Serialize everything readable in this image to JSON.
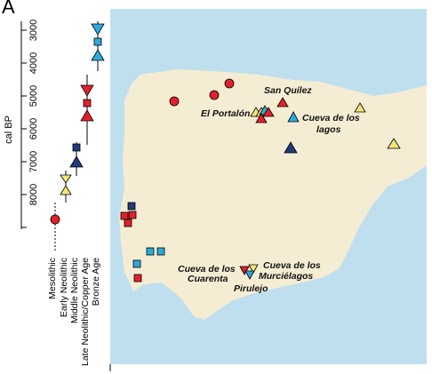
{
  "panel_label": "A",
  "timeline": {
    "axis_title": "cal BP",
    "ticks": [
      "3000",
      "4000",
      "5000",
      "6000",
      "7000",
      "8000"
    ],
    "periods": [
      "Mesolithic",
      "Early Neolithic",
      "Middle Neolithic",
      "Late Neolithic/Copper Age",
      "Bronze Age"
    ]
  },
  "map": {
    "site_labels": {
      "san_quilez": "San Quílez",
      "el_portalon": "El Portalón",
      "cueva_lagos_1": "Cueva de los",
      "cueva_lagos_2": "lagos",
      "cueva_cuarenta_1": "Cueva de los",
      "cueva_cuarenta_2": "Cuarenta",
      "cueva_murcielagos_1": "Cueva de los",
      "cueva_murcielagos_2": "Murciélagos",
      "pirulejo": "Pirulejo"
    }
  },
  "legend_symbols": {
    "Mesolithic": {
      "shape": "circle",
      "color": "#e2202b"
    },
    "Early Neolithic": {
      "shape": "hourglass-triangles",
      "color": "#f3e47c"
    },
    "Middle Neolithic": {
      "shape": "triangle-up",
      "color": "#1f3b78"
    },
    "Late Neolithic/Copper Age": {
      "shape": "square/triangles",
      "color": "#e2202b"
    },
    "Bronze Age": {
      "shape": "square/triangles",
      "color": "#2ea9dc"
    }
  },
  "colors": {
    "sea": "#bfdfee",
    "land": "#f5edd3",
    "red": "#e2202b",
    "yellow": "#f3e47c",
    "navy": "#1f3b78",
    "cyan": "#2ea9dc"
  }
}
